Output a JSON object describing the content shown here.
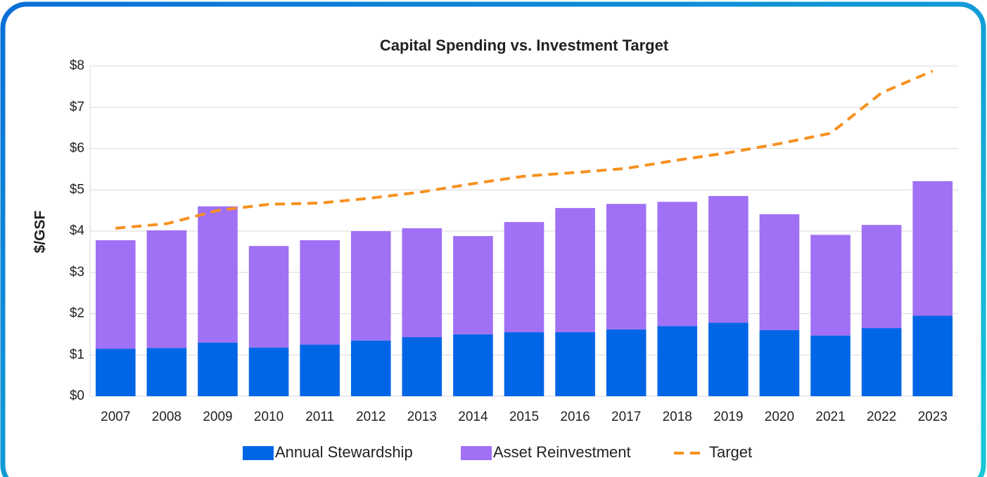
{
  "chart_data": {
    "type": "bar",
    "stacked": true,
    "title": "Capital Spending vs. Investment Target",
    "y_label": "$/GSF",
    "categories": [
      "2007",
      "2008",
      "2009",
      "2010",
      "2011",
      "2012",
      "2013",
      "2014",
      "2015",
      "2016",
      "2017",
      "2018",
      "2019",
      "2020",
      "2021",
      "2022",
      "2023"
    ],
    "series": [
      {
        "name": "Annual Stewardship",
        "type": "bar",
        "color": "#0066e6",
        "values": [
          1.15,
          1.17,
          1.3,
          1.18,
          1.25,
          1.35,
          1.43,
          1.5,
          1.55,
          1.55,
          1.62,
          1.7,
          1.78,
          1.6,
          1.47,
          1.65,
          1.95
        ]
      },
      {
        "name": "Asset Reinvestment",
        "type": "bar",
        "color": "#a070f5",
        "values": [
          2.63,
          2.85,
          3.3,
          2.46,
          2.53,
          2.65,
          2.64,
          2.38,
          2.67,
          3.01,
          3.04,
          3.01,
          3.07,
          2.81,
          2.44,
          2.5,
          3.26
        ]
      },
      {
        "name": "Target",
        "type": "line",
        "dashed": true,
        "color": "#f7901e",
        "values": [
          4.07,
          4.18,
          4.5,
          4.65,
          4.68,
          4.8,
          4.95,
          5.15,
          5.33,
          5.42,
          5.52,
          5.72,
          5.9,
          6.12,
          6.37,
          7.35,
          7.88
        ]
      }
    ],
    "ylim": [
      0,
      8
    ],
    "yticks": [
      {
        "value": 0,
        "label": "$0"
      },
      {
        "value": 1,
        "label": "$1"
      },
      {
        "value": 2,
        "label": "$2"
      },
      {
        "value": 3,
        "label": "$3"
      },
      {
        "value": 4,
        "label": "$4"
      },
      {
        "value": 5,
        "label": "$5"
      },
      {
        "value": 6,
        "label": "$6"
      },
      {
        "value": 7,
        "label": "$7"
      },
      {
        "value": 8,
        "label": "$8"
      }
    ],
    "grid": true,
    "legend": "bottom"
  }
}
